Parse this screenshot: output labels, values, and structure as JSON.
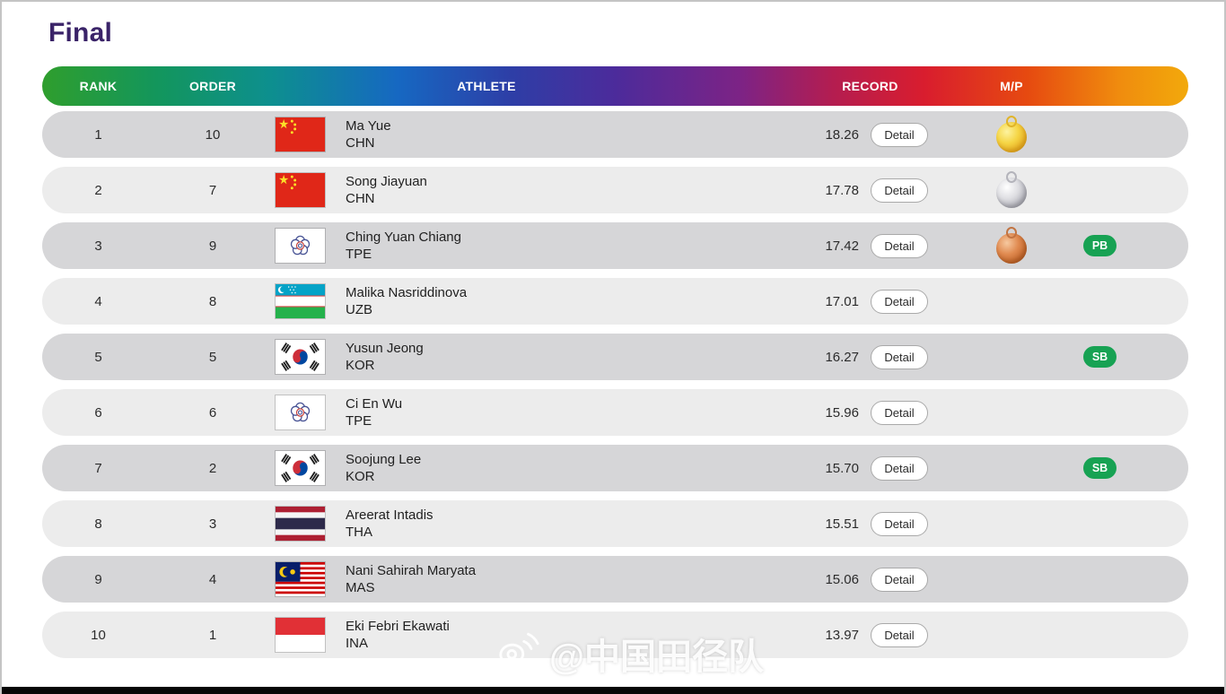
{
  "page": {
    "title": "Final",
    "watermark": "@中国田径队",
    "watermark_icon": "weibo-icon"
  },
  "colors": {
    "title_purple": "#3a2368",
    "badge_green": "#17a253",
    "row_dark": "#d6d6d8",
    "row_light": "#ececec",
    "header_gradient": [
      "#2f9e2d",
      "#0d8f8f",
      "#1668c2",
      "#4c2b9b",
      "#b41d50",
      "#d91d2e",
      "#f08c0e",
      "#f2a90b"
    ]
  },
  "table": {
    "headers": [
      "RANK",
      "ORDER",
      "ATHLETE",
      "RECORD",
      "M/P"
    ],
    "detail_label": "Detail",
    "medal_icons": {
      "gold": "gold-medal-icon",
      "silver": "silver-medal-icon",
      "bronze": "bronze-medal-icon"
    },
    "rows": [
      {
        "rank": "1",
        "order": "10",
        "flag": "chn",
        "name": "Ma Yue",
        "country": "CHN",
        "record": "18.26",
        "medal": "gold",
        "badge": ""
      },
      {
        "rank": "2",
        "order": "7",
        "flag": "chn",
        "name": "Song Jiayuan",
        "country": "CHN",
        "record": "17.78",
        "medal": "silver",
        "badge": ""
      },
      {
        "rank": "3",
        "order": "9",
        "flag": "tpe",
        "name": "Ching Yuan Chiang",
        "country": "TPE",
        "record": "17.42",
        "medal": "bronze",
        "badge": "PB"
      },
      {
        "rank": "4",
        "order": "8",
        "flag": "uzb",
        "name": "Malika Nasriddinova",
        "country": "UZB",
        "record": "17.01",
        "medal": "",
        "badge": ""
      },
      {
        "rank": "5",
        "order": "5",
        "flag": "kor",
        "name": "Yusun Jeong",
        "country": "KOR",
        "record": "16.27",
        "medal": "",
        "badge": "SB"
      },
      {
        "rank": "6",
        "order": "6",
        "flag": "tpe",
        "name": "Ci En Wu",
        "country": "TPE",
        "record": "15.96",
        "medal": "",
        "badge": ""
      },
      {
        "rank": "7",
        "order": "2",
        "flag": "kor",
        "name": "Soojung Lee",
        "country": "KOR",
        "record": "15.70",
        "medal": "",
        "badge": "SB"
      },
      {
        "rank": "8",
        "order": "3",
        "flag": "tha",
        "name": "Areerat Intadis",
        "country": "THA",
        "record": "15.51",
        "medal": "",
        "badge": ""
      },
      {
        "rank": "9",
        "order": "4",
        "flag": "mas",
        "name": "Nani Sahirah Maryata",
        "country": "MAS",
        "record": "15.06",
        "medal": "",
        "badge": ""
      },
      {
        "rank": "10",
        "order": "1",
        "flag": "ina",
        "name": "Eki Febri Ekawati",
        "country": "INA",
        "record": "13.97",
        "medal": "",
        "badge": ""
      }
    ]
  }
}
